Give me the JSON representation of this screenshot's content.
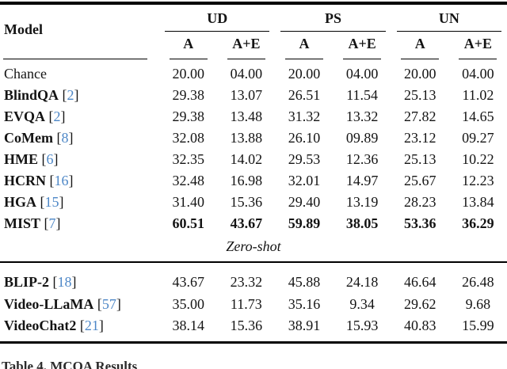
{
  "colors": {
    "citation_blue": "#4d87c7",
    "rule_black": "#000000",
    "text": "#141414"
  },
  "table": {
    "model_header": "Model",
    "groups": [
      {
        "label": "UD"
      },
      {
        "label": "PS"
      },
      {
        "label": "UN"
      }
    ],
    "subcolumns": [
      "A",
      "A+E",
      "A",
      "A+E",
      "A",
      "A+E"
    ],
    "rows": [
      {
        "model": "Chance",
        "cite": null,
        "bold_name": false,
        "bold_values": false,
        "values": [
          "20.00",
          "04.00",
          "20.00",
          "04.00",
          "20.00",
          "04.00"
        ]
      },
      {
        "model": "BlindQA",
        "cite": "2",
        "bold_name": true,
        "bold_values": false,
        "values": [
          "29.38",
          "13.07",
          "26.51",
          "11.54",
          "25.13",
          "11.02"
        ]
      },
      {
        "model": "EVQA",
        "cite": "2",
        "bold_name": true,
        "bold_values": false,
        "values": [
          "29.38",
          "13.48",
          "31.32",
          "13.32",
          "27.82",
          "14.65"
        ]
      },
      {
        "model": "CoMem",
        "cite": "8",
        "bold_name": true,
        "bold_values": false,
        "values": [
          "32.08",
          "13.88",
          "26.10",
          "09.89",
          "23.12",
          "09.27"
        ]
      },
      {
        "model": "HME",
        "cite": "6",
        "bold_name": true,
        "bold_values": false,
        "values": [
          "32.35",
          "14.02",
          "29.53",
          "12.36",
          "25.13",
          "10.22"
        ]
      },
      {
        "model": "HCRN",
        "cite": "16",
        "bold_name": true,
        "bold_values": false,
        "values": [
          "32.48",
          "16.98",
          "32.01",
          "14.97",
          "25.67",
          "12.23"
        ]
      },
      {
        "model": "HGA",
        "cite": "15",
        "bold_name": true,
        "bold_values": false,
        "values": [
          "31.40",
          "15.36",
          "29.40",
          "13.19",
          "28.23",
          "13.84"
        ]
      },
      {
        "model": "MIST",
        "cite": "7",
        "bold_name": true,
        "bold_values": true,
        "values": [
          "60.51",
          "43.67",
          "59.89",
          "38.05",
          "53.36",
          "36.29"
        ]
      }
    ],
    "section_label": "Zero-shot",
    "zero_shot_rows": [
      {
        "model": "BLIP-2",
        "cite": "18",
        "bold_name": true,
        "bold_values": false,
        "values": [
          "43.67",
          "23.32",
          "45.88",
          "24.18",
          "46.64",
          "26.48"
        ]
      },
      {
        "model": "Video-LLaMA",
        "cite": "57",
        "bold_name": true,
        "bold_values": false,
        "values": [
          "35.00",
          "11.73",
          "35.16",
          "9.34",
          "29.62",
          "9.68"
        ]
      },
      {
        "model": "VideoChat2",
        "cite": "21",
        "bold_name": true,
        "bold_values": false,
        "values": [
          "38.14",
          "15.36",
          "38.91",
          "15.93",
          "40.83",
          "15.99"
        ]
      }
    ]
  },
  "caption": {
    "fragment": "Table 4. MCQA Results"
  }
}
